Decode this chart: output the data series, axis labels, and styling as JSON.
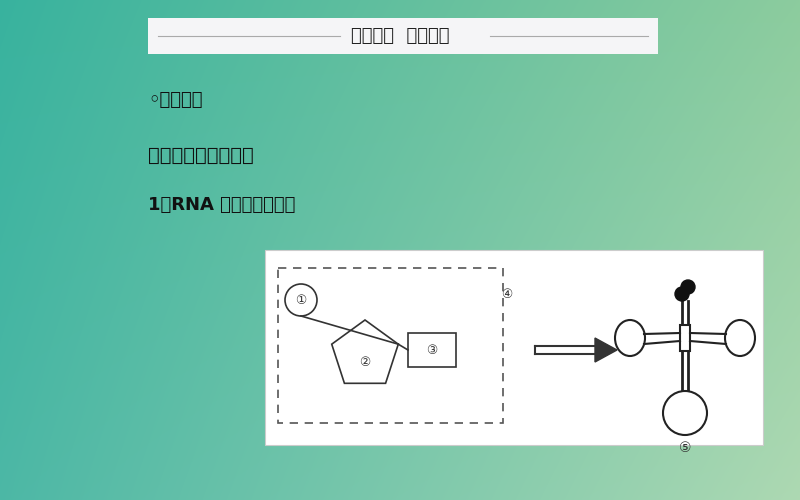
{
  "bg_tl": [
    0.22,
    0.7,
    0.62
  ],
  "bg_tr": [
    0.55,
    0.8,
    0.62
  ],
  "bg_bl": [
    0.3,
    0.72,
    0.65
  ],
  "bg_br": [
    0.68,
    0.85,
    0.7
  ],
  "title_bar": [
    0.96,
    0.96,
    0.97
  ],
  "title_text": "预习导学  思维启动",
  "text1": "◦知识梳理",
  "text2": "一、遗传信息的转录",
  "text3": "1．RNA 的结构和种类。",
  "label1": "①",
  "label2": "②",
  "label3": "③",
  "label4": "④",
  "label5": "⑤"
}
